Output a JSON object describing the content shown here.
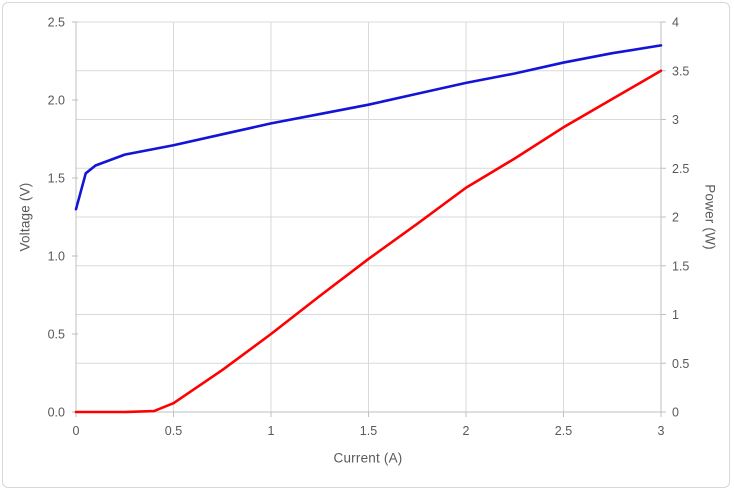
{
  "chart_data": {
    "type": "line",
    "title": "",
    "legend": "none",
    "grid": true,
    "xlabel": "Current (A)",
    "x_range": [
      0,
      3
    ],
    "x_tick_step": 0.5,
    "x_tick_labels": [
      "0",
      "0.5",
      "1",
      "1.5",
      "2",
      "2.5",
      "3"
    ],
    "left_axis": {
      "title": "Voltage (V)",
      "range": [
        0,
        2.5
      ],
      "tick_step": 0.5,
      "tick_labels": [
        "0.0",
        "0.5",
        "1.0",
        "1.5",
        "2.0",
        "2.5"
      ]
    },
    "right_axis": {
      "title": "Power (W)",
      "range": [
        0,
        4
      ],
      "tick_step": 0.5,
      "tick_labels": [
        "0",
        "0.5",
        "1",
        "1.5",
        "2",
        "2.5",
        "3",
        "3.5",
        "4"
      ]
    },
    "series": [
      {
        "key": "voltage",
        "name": "Voltage (V)",
        "axis": "left",
        "color": "#1414d6",
        "points": [
          [
            0,
            1.3
          ],
          [
            0.05,
            1.53
          ],
          [
            0.1,
            1.58
          ],
          [
            0.25,
            1.65
          ],
          [
            0.5,
            1.71
          ],
          [
            0.75,
            1.78
          ],
          [
            1,
            1.85
          ],
          [
            1.25,
            1.91
          ],
          [
            1.5,
            1.97
          ],
          [
            1.75,
            2.04
          ],
          [
            2,
            2.11
          ],
          [
            2.25,
            2.17
          ],
          [
            2.5,
            2.24
          ],
          [
            2.75,
            2.3
          ],
          [
            3,
            2.35
          ]
        ]
      },
      {
        "key": "power",
        "name": "Power (W)",
        "axis": "right",
        "color": "#ff0000",
        "points": [
          [
            0,
            0
          ],
          [
            0.25,
            0
          ],
          [
            0.4,
            0.01
          ],
          [
            0.5,
            0.09
          ],
          [
            0.75,
            0.43
          ],
          [
            1,
            0.8
          ],
          [
            1.25,
            1.19
          ],
          [
            1.5,
            1.57
          ],
          [
            1.75,
            1.93
          ],
          [
            2,
            2.3
          ],
          [
            2.25,
            2.6
          ],
          [
            2.5,
            2.92
          ],
          [
            2.75,
            3.21
          ],
          [
            3,
            3.5
          ]
        ]
      }
    ],
    "colors": {
      "gridline": "#d9d9d9",
      "axis_line": "#bfbfbf",
      "tick_text": "#595959",
      "background": "#ffffff",
      "border": "#d8d8d8"
    }
  }
}
